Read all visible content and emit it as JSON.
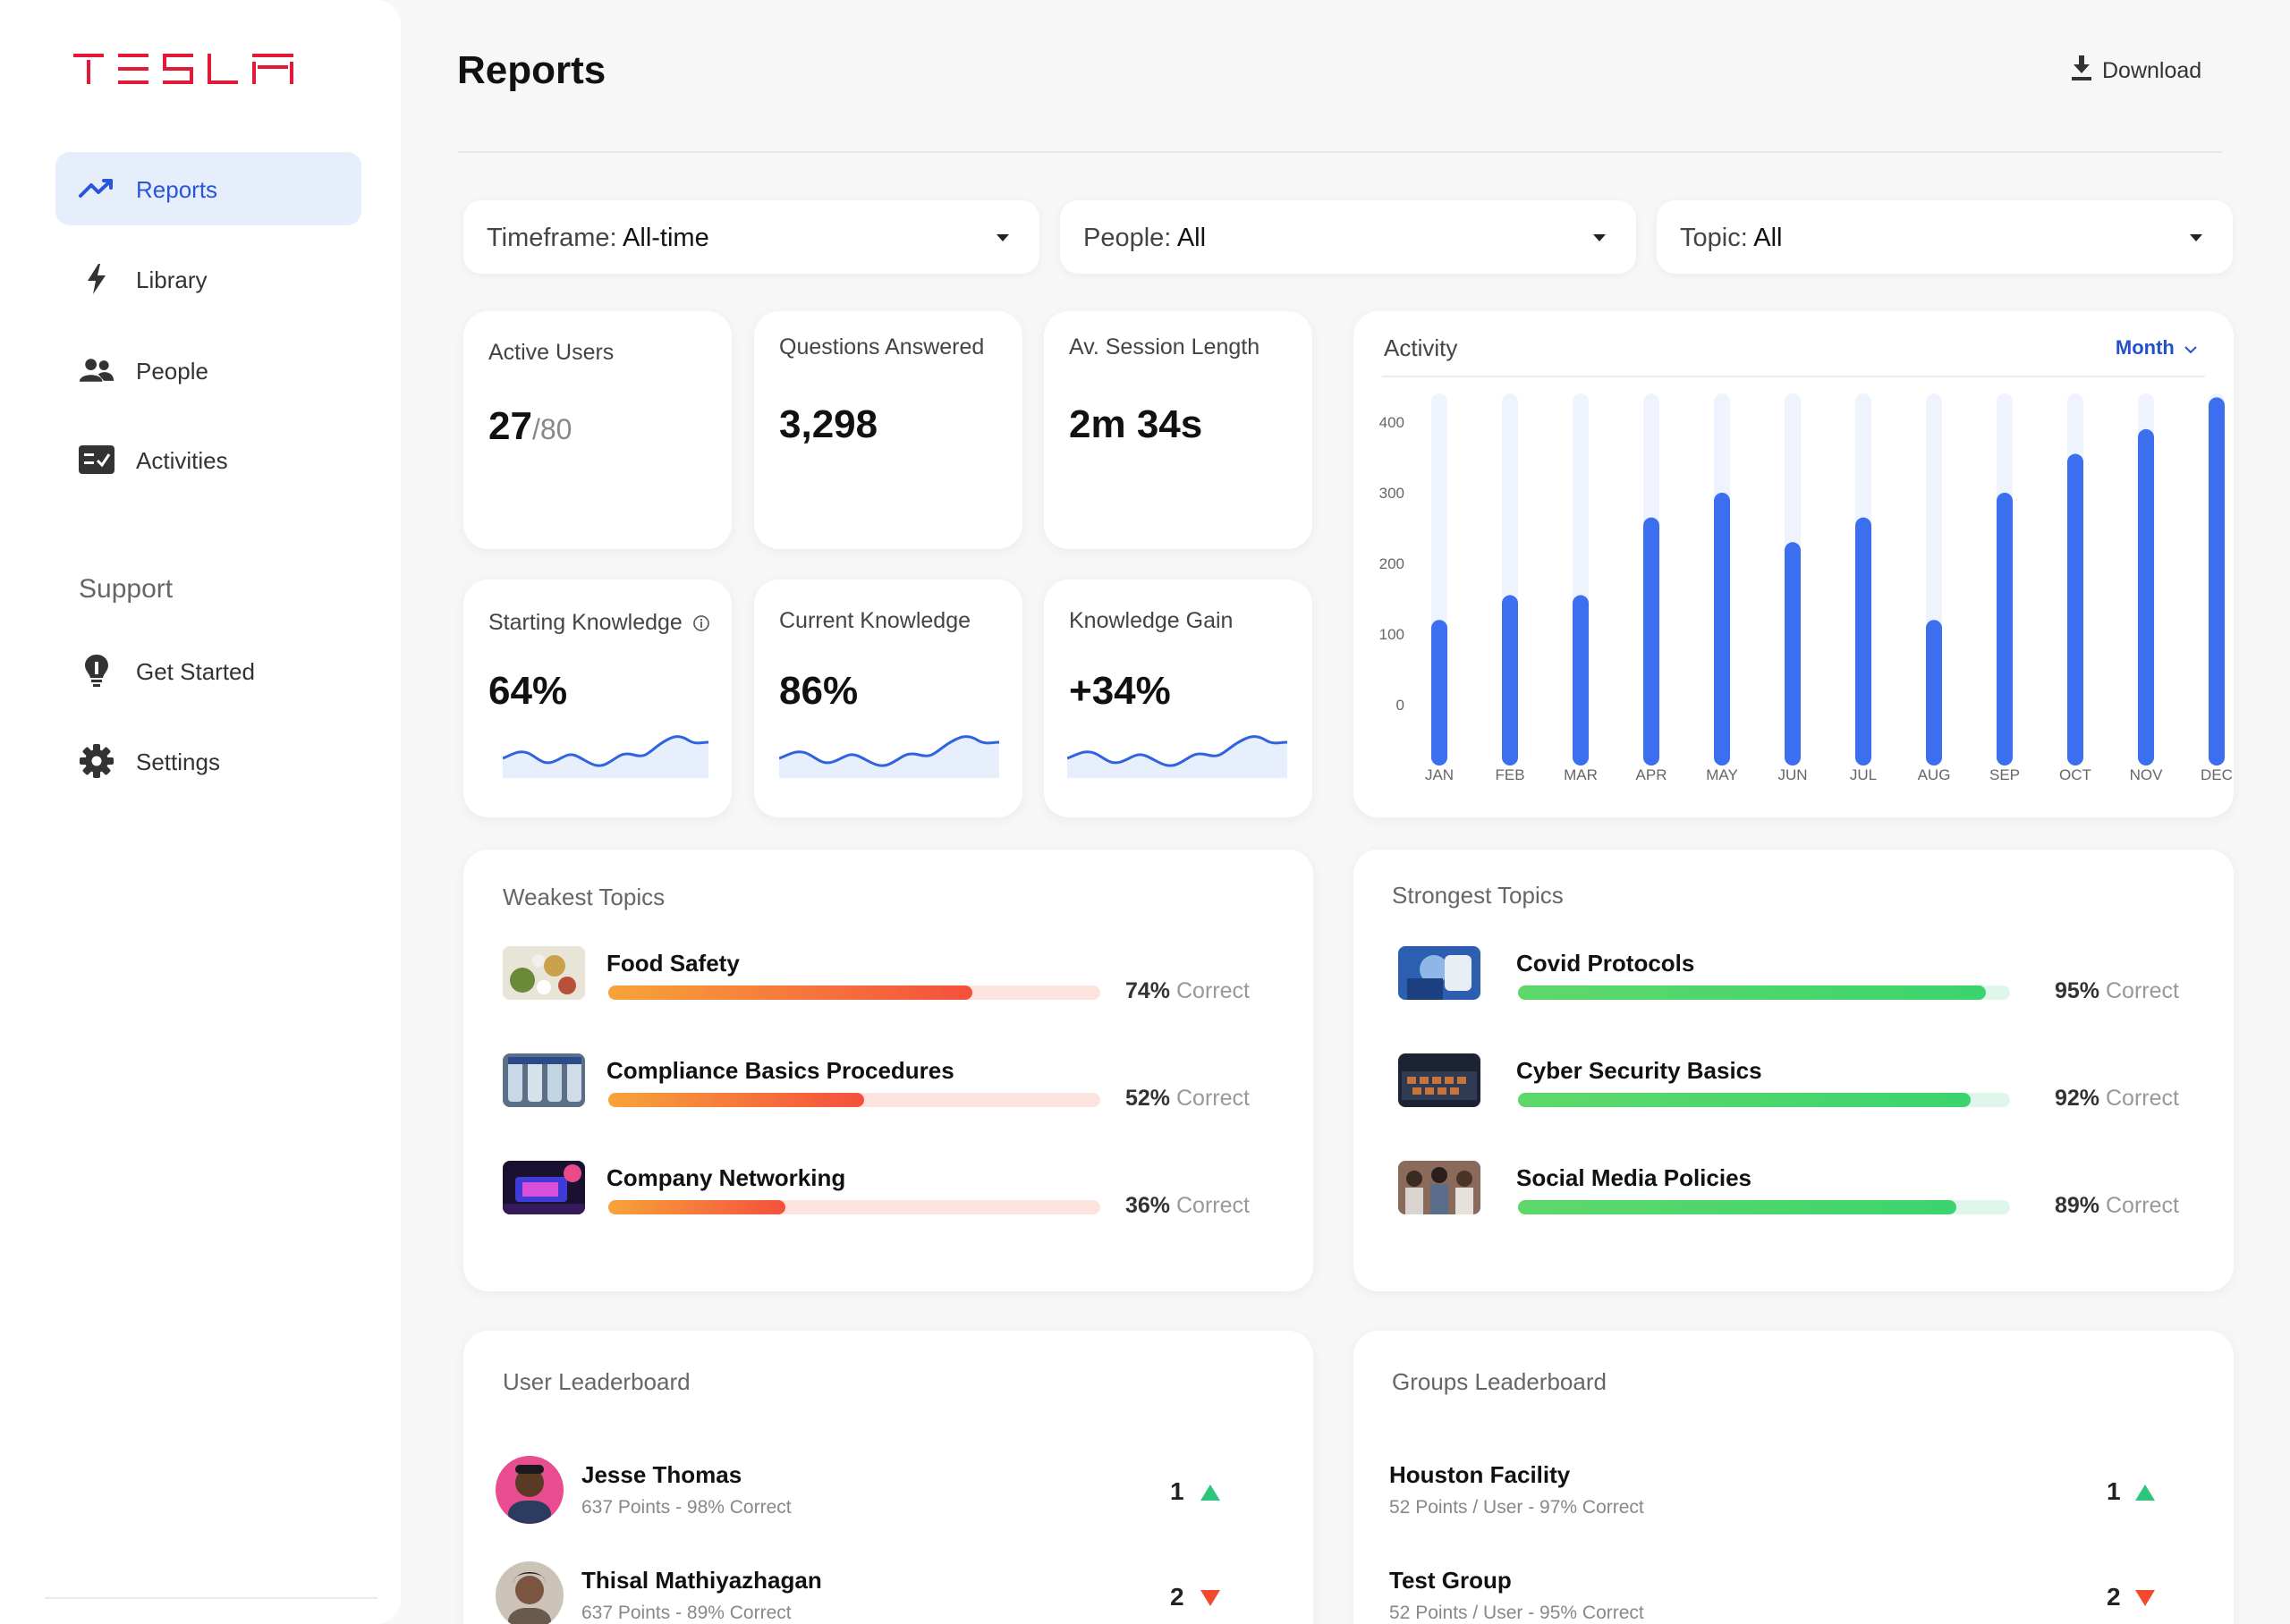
{
  "brand": {
    "logo_text": "TESLA",
    "accent": "#e31937"
  },
  "sidebar": {
    "items": [
      {
        "label": "Reports",
        "icon": "trending-up-icon",
        "active": true
      },
      {
        "label": "Library",
        "icon": "lightning-icon"
      },
      {
        "label": "People",
        "icon": "people-icon"
      },
      {
        "label": "Activities",
        "icon": "checklist-icon"
      }
    ],
    "support_heading": "Support",
    "support_items": [
      {
        "label": "Get Started",
        "icon": "lightbulb-icon"
      },
      {
        "label": "Settings",
        "icon": "gear-icon"
      }
    ]
  },
  "header": {
    "title": "Reports",
    "download_label": "Download"
  },
  "filters": [
    {
      "label": "Timeframe:",
      "value": "All-time"
    },
    {
      "label": "People:",
      "value": "All"
    },
    {
      "label": "Topic:",
      "value": "All"
    }
  ],
  "stats": [
    {
      "title": "Active Users",
      "value": "27",
      "sub": "/80"
    },
    {
      "title": "Questions Answered",
      "value": "3,298"
    },
    {
      "title": "Av. Session Length",
      "value": "2m 34s"
    },
    {
      "title": "Starting Knowledge",
      "value": "64%"
    },
    {
      "title": "Current Knowledge",
      "value": "86%"
    },
    {
      "title": "Knowledge Gain",
      "value": "+34%"
    }
  ],
  "activity": {
    "title": "Activity",
    "period_label": "Month"
  },
  "chart_data": {
    "type": "bar",
    "categories": [
      "JAN",
      "FEB",
      "MAR",
      "APR",
      "MAY",
      "JUN",
      "JUL",
      "AUG",
      "SEP",
      "OCT",
      "NOV",
      "DEC"
    ],
    "values": [
      120,
      155,
      155,
      265,
      300,
      230,
      265,
      120,
      300,
      355,
      390,
      435
    ],
    "ylim": [
      0,
      400
    ],
    "yticks": [
      "400",
      "300",
      "200",
      "100",
      "0"
    ],
    "color": "#3b6ff0",
    "track_color": "#eef3fd"
  },
  "weakest": {
    "title": "Weakest Topics",
    "items": [
      {
        "name": "Food Safety",
        "percent": "74%",
        "progress": 74,
        "correct": "Correct"
      },
      {
        "name": "Compliance Basics Procedures",
        "percent": "52%",
        "progress": 52,
        "correct": "Correct"
      },
      {
        "name": "Company Networking",
        "percent": "36%",
        "progress": 36,
        "correct": "Correct"
      }
    ]
  },
  "strongest": {
    "title": "Strongest Topics",
    "items": [
      {
        "name": "Covid Protocols",
        "percent": "95%",
        "progress": 95,
        "correct": "Correct"
      },
      {
        "name": "Cyber Security Basics",
        "percent": "92%",
        "progress": 92,
        "correct": "Correct"
      },
      {
        "name": "Social Media Policies",
        "percent": "89%",
        "progress": 89,
        "correct": "Correct"
      }
    ]
  },
  "user_leaderboard": {
    "title": "User Leaderboard",
    "rows": [
      {
        "name": "Jesse Thomas",
        "sub": "637 Points - 98% Correct",
        "rank": "1",
        "trend": "up"
      },
      {
        "name": "Thisal Mathiyazhagan",
        "sub": "637 Points - 89% Correct",
        "rank": "2",
        "trend": "down"
      }
    ]
  },
  "groups_leaderboard": {
    "title": "Groups Leaderboard",
    "rows": [
      {
        "name": "Houston Facility",
        "sub": "52 Points / User - 97% Correct",
        "rank": "1",
        "trend": "up"
      },
      {
        "name": "Test Group",
        "sub": "52 Points / User - 95% Correct",
        "rank": "2",
        "trend": "down"
      }
    ]
  },
  "colors": {
    "up": "#2fc47b",
    "down": "#f24a2c",
    "weak_bar": "#f4503d",
    "strong_bar": "#3bd46e"
  }
}
